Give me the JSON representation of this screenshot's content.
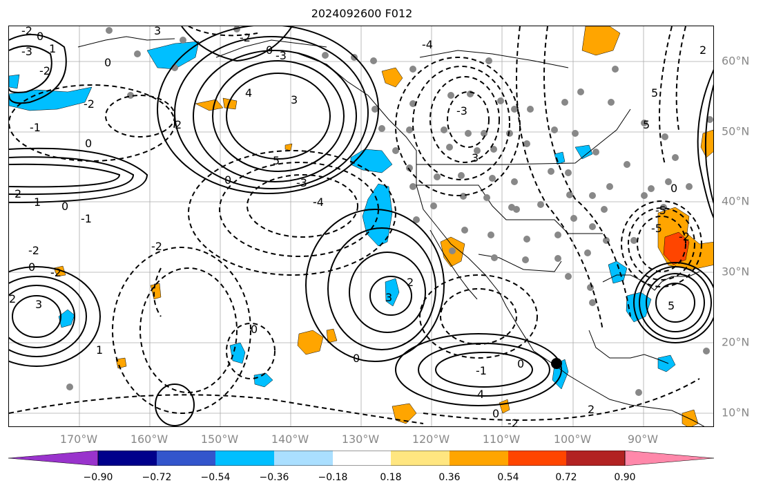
{
  "title": "2024092600 F012",
  "map": {
    "lon_labels": [
      "170°W",
      "160°W",
      "150°W",
      "140°W",
      "130°W",
      "120°W",
      "110°W",
      "100°W",
      "90°W"
    ],
    "lat_labels": [
      "60°N",
      "50°N",
      "40°N",
      "30°N",
      "20°N",
      "10°N"
    ],
    "contour_labels": [
      {
        "id": "c1",
        "text": "-2"
      },
      {
        "id": "c2",
        "text": "0"
      },
      {
        "id": "c3",
        "text": "3"
      },
      {
        "id": "c4",
        "text": "-2"
      },
      {
        "id": "c5",
        "text": "0"
      },
      {
        "id": "c6",
        "text": "-3"
      },
      {
        "id": "c7",
        "text": "1"
      },
      {
        "id": "c8",
        "text": "-3"
      },
      {
        "id": "c9",
        "text": "-2"
      },
      {
        "id": "c10",
        "text": "0"
      },
      {
        "id": "c11",
        "text": "4"
      },
      {
        "id": "c12",
        "text": "3"
      },
      {
        "id": "c13",
        "text": "-2"
      },
      {
        "id": "c14",
        "text": "-1"
      },
      {
        "id": "c15",
        "text": "0"
      },
      {
        "id": "c16",
        "text": "2"
      },
      {
        "id": "c17",
        "text": "5"
      },
      {
        "id": "c18",
        "text": "0"
      },
      {
        "id": "c19",
        "text": "-3"
      },
      {
        "id": "c20",
        "text": "-4"
      },
      {
        "id": "c21",
        "text": "2"
      },
      {
        "id": "c22",
        "text": "1"
      },
      {
        "id": "c23",
        "text": "0"
      },
      {
        "id": "c24",
        "text": "-1"
      },
      {
        "id": "c25",
        "text": "-2"
      },
      {
        "id": "c26",
        "text": "-2"
      },
      {
        "id": "c27",
        "text": "0"
      },
      {
        "id": "c28",
        "text": "-2"
      },
      {
        "id": "c29",
        "text": "3"
      },
      {
        "id": "c30",
        "text": "2"
      },
      {
        "id": "c31",
        "text": "0"
      },
      {
        "id": "c32",
        "text": "3"
      },
      {
        "id": "c33",
        "text": "0"
      },
      {
        "id": "c34",
        "text": "2"
      },
      {
        "id": "c35",
        "text": "1"
      },
      {
        "id": "c36",
        "text": "0"
      },
      {
        "id": "c37",
        "text": "-1"
      },
      {
        "id": "c38",
        "text": "0"
      },
      {
        "id": "c39",
        "text": "-2"
      },
      {
        "id": "c40",
        "text": "-4"
      },
      {
        "id": "c41",
        "text": "-3"
      },
      {
        "id": "c42",
        "text": "3"
      },
      {
        "id": "c43",
        "text": "4"
      },
      {
        "id": "c44",
        "text": "2"
      },
      {
        "id": "c45",
        "text": "5"
      },
      {
        "id": "c46",
        "text": "-5"
      },
      {
        "id": "c47",
        "text": "-5"
      },
      {
        "id": "c48",
        "text": "5"
      },
      {
        "id": "c49",
        "text": "5"
      },
      {
        "id": "c50",
        "text": "2"
      },
      {
        "id": "c51",
        "text": "0"
      },
      {
        "id": "c52",
        "text": "-2"
      }
    ]
  },
  "colorbar": {
    "colors": [
      "#9933cc",
      "#00008b",
      "#3355cc",
      "#00bfff",
      "#aadfff",
      "#ffffff",
      "#ffe680",
      "#ffa500",
      "#ff4500",
      "#b22222",
      "#ff88aa"
    ],
    "tick_labels": [
      "−0.90",
      "−0.72",
      "−0.54",
      "−0.36",
      "−0.18",
      "0.18",
      "0.36",
      "0.54",
      "0.72",
      "0.90"
    ]
  },
  "colors": {
    "negative_anomaly": "#00bfff",
    "positive_anomaly": "#ffa500",
    "strong_positive": "#ff4500",
    "station_dot": "#888888",
    "grid": "#aaaaaa"
  }
}
